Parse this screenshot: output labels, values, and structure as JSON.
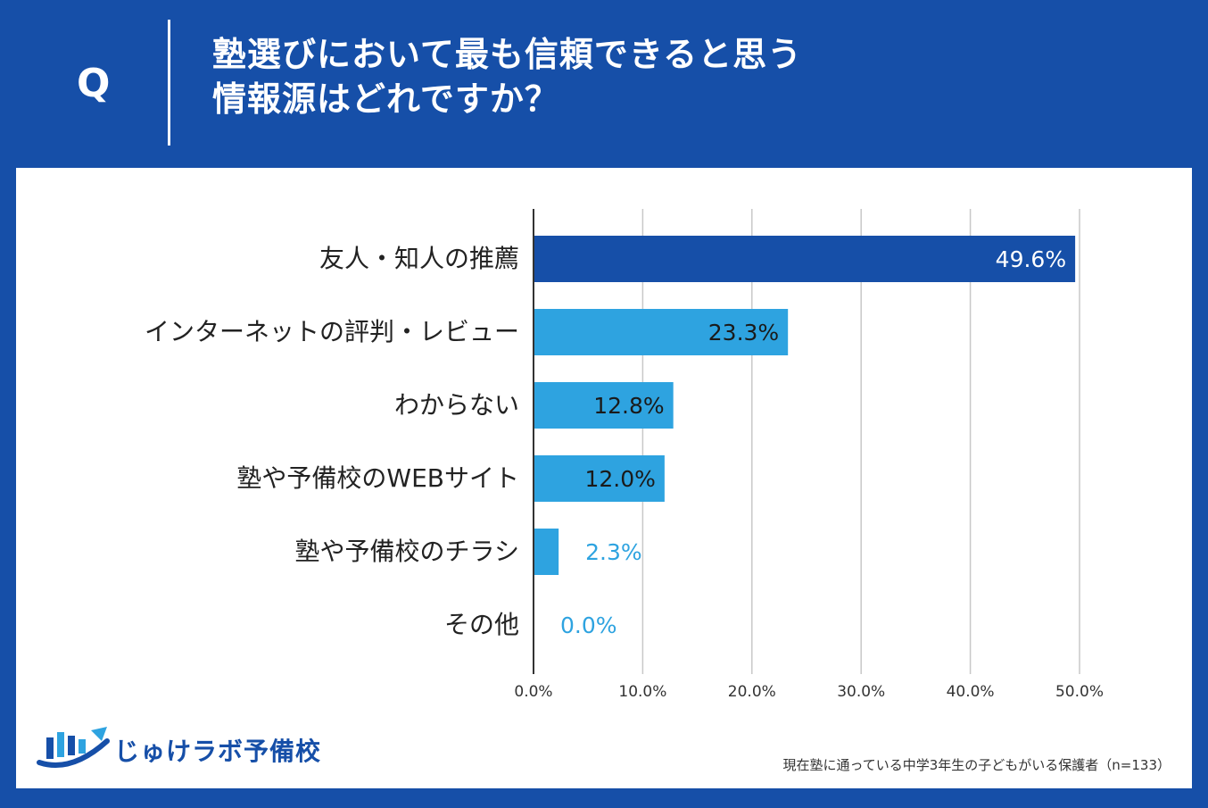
{
  "header": {
    "q_label": "Q",
    "question_line1": "塾選びにおいて最も信頼できると思う",
    "question_line2": "情報源はどれですか？"
  },
  "chart_data": {
    "type": "bar",
    "orientation": "horizontal",
    "categories": [
      "友人・知人の推薦",
      "インターネットの評判・レビュー",
      "わからない",
      "塾や予備校のWEBサイト",
      "塾や予備校のチラシ",
      "その他"
    ],
    "values": [
      49.6,
      23.3,
      12.8,
      12.0,
      2.3,
      0.0
    ],
    "value_labels": [
      "49.6%",
      "23.3%",
      "12.8%",
      "12.0%",
      "2.3%",
      "0.0%"
    ],
    "xlim": [
      0,
      50
    ],
    "ticks": [
      0,
      10,
      20,
      30,
      40,
      50
    ],
    "tick_labels": [
      "0.0%",
      "10.0%",
      "20.0%",
      "30.0%",
      "40.0%",
      "50.0%"
    ],
    "grid": true,
    "colors": {
      "highlight": "#164fa8",
      "default": "#2ea3e0"
    }
  },
  "brand": {
    "name": "じゅけラボ予備校"
  },
  "footnote": "現在塾に通っている中学3年生の子どもがいる保護者（n=133）",
  "colors": {
    "brand_blue": "#164fa8",
    "bar_blue": "#2ea3e0"
  }
}
